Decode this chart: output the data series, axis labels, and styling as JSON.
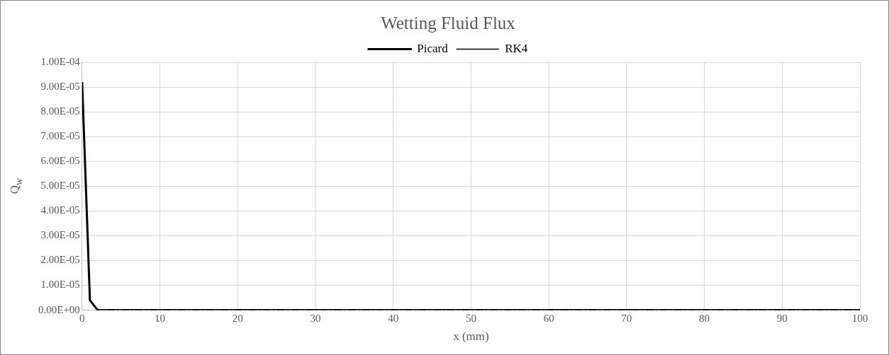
{
  "chart_data": {
    "type": "line",
    "title": "Wetting Fluid Flux",
    "xlabel": "x (mm)",
    "ylabel": "Q$_{w}$",
    "x": [
      0,
      1,
      2,
      100
    ],
    "series": [
      {
        "name": "Picard",
        "color": "#000000",
        "line_style": "solid",
        "values": [
          9.2e-05,
          4e-06,
          0,
          0
        ]
      },
      {
        "name": "RK4",
        "color": "#000000",
        "line_style": "dashed",
        "values": [
          9.2e-05,
          4e-06,
          0,
          0
        ]
      }
    ],
    "xlim": [
      0,
      100
    ],
    "xticks": [
      0,
      10,
      20,
      30,
      40,
      50,
      60,
      70,
      80,
      90,
      100
    ],
    "ylim": [
      0,
      0.0001
    ],
    "yticks": [
      {
        "value": 0,
        "label": "0.00E+00"
      },
      {
        "value": 1e-05,
        "label": "1.00E-05"
      },
      {
        "value": 2e-05,
        "label": "2.00E-05"
      },
      {
        "value": 3e-05,
        "label": "3.00E-05"
      },
      {
        "value": 4e-05,
        "label": "4.00E-05"
      },
      {
        "value": 5e-05,
        "label": "5.00E-05"
      },
      {
        "value": 6e-05,
        "label": "6.00E-05"
      },
      {
        "value": 7e-05,
        "label": "7.00E-05"
      },
      {
        "value": 8e-05,
        "label": "8.00E-05"
      },
      {
        "value": 9e-05,
        "label": "9.00E-05"
      },
      {
        "value": 0.0001,
        "label": "1.00E-04"
      }
    ],
    "grid": true,
    "legend": "top",
    "marker": "none"
  }
}
